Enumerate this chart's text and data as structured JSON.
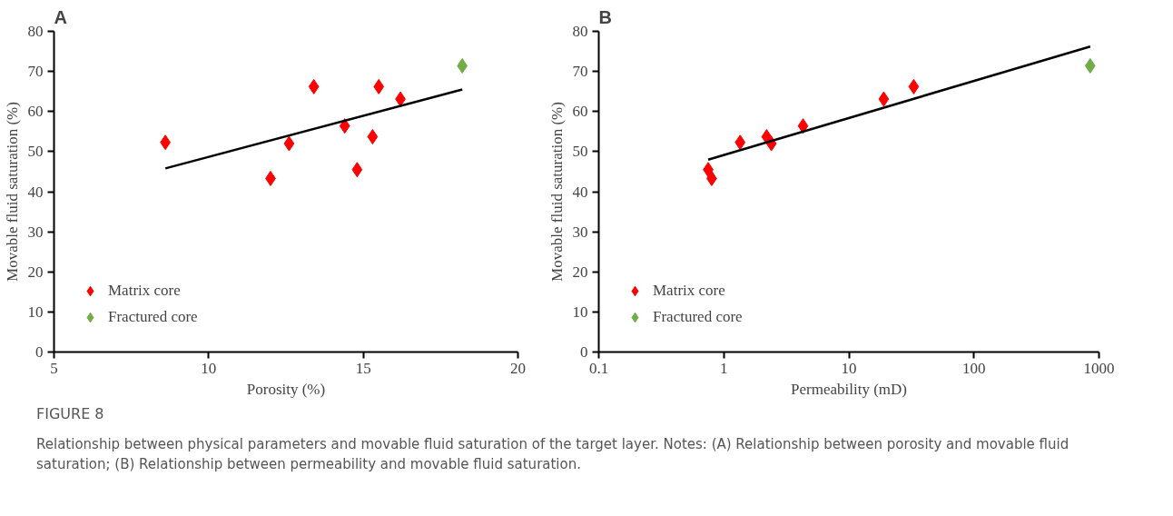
{
  "chart_data": [
    {
      "type": "scatter",
      "title": "A",
      "xlabel": "Porosity (%)",
      "ylabel": "Movable fluid saturation (%)",
      "xlim": [
        5,
        20
      ],
      "xticks": [
        5,
        10,
        15,
        20
      ],
      "ylim": [
        0,
        80
      ],
      "yticks": [
        0,
        10,
        20,
        30,
        40,
        50,
        60,
        70,
        80
      ],
      "grid": false,
      "legend": "bottom left",
      "marker": "diamond",
      "series": [
        {
          "name": "Matrix core",
          "color": "#ff0000",
          "x": [
            8.6,
            12.0,
            12.6,
            13.4,
            14.4,
            14.8,
            15.3,
            15.5,
            16.2
          ],
          "values": [
            52.3,
            43.3,
            52.0,
            66.2,
            56.4,
            45.5,
            53.7,
            66.2,
            63.1
          ]
        },
        {
          "name": "Fractured core",
          "color": "#70ad47",
          "x": [
            18.2
          ],
          "values": [
            71.4
          ]
        },
        {
          "type": "line",
          "marker": "none",
          "color": "#000000",
          "x": [
            8.6,
            18.2
          ],
          "values": [
            45.8,
            65.5
          ]
        }
      ],
      "annotations": [
        "FIGURE 8",
        "Relationship between physical parameters and movable fluid saturation of the target layer. Notes: (A) Relationship between porosity and movable fluid saturation; (B) Relationship between permeability and movable fluid saturation."
      ]
    },
    {
      "type": "scatter",
      "title": "B",
      "xlabel": "Permeability (mD)",
      "ylabel": "Movable fluid saturation (%)",
      "log": "x",
      "xlim": [
        0.1,
        1000
      ],
      "xticks": [
        0.1,
        1,
        10,
        100,
        1000
      ],
      "ylim": [
        0,
        80
      ],
      "yticks": [
        0,
        10,
        20,
        30,
        40,
        50,
        60,
        70,
        80
      ],
      "grid": false,
      "legend": "bottom left",
      "marker": "diamond",
      "series": [
        {
          "name": "Matrix core",
          "color": "#ff0000",
          "x": [
            0.75,
            0.8,
            1.35,
            2.2,
            2.4,
            4.3,
            19,
            33
          ],
          "values": [
            45.5,
            43.3,
            52.3,
            53.7,
            52.0,
            56.4,
            63.1,
            66.2
          ]
        },
        {
          "name": "Fractured core",
          "color": "#70ad47",
          "x": [
            850
          ],
          "values": [
            71.4
          ]
        },
        {
          "type": "line",
          "marker": "none",
          "color": "#000000",
          "x": [
            0.75,
            850
          ],
          "values": [
            48.0,
            76.2
          ]
        }
      ]
    }
  ]
}
